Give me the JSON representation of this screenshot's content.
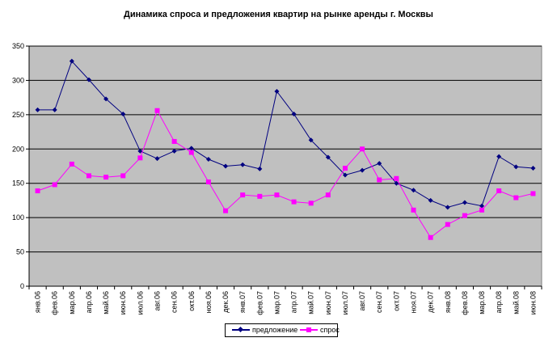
{
  "chart_data": {
    "type": "line",
    "title": "Динамика спроса и предложения квартир на рынке аренды г. Москвы",
    "categories": [
      "янв.06",
      "фев.06",
      "мар.06",
      "апр.06",
      "май.06",
      "июн.06",
      "июл.06",
      "авг.06",
      "сен.06",
      "окт.06",
      "ноя.06",
      "дек.06",
      "янв.07",
      "фев.07",
      "мар.07",
      "апр.07",
      "май.07",
      "июн.07",
      "июл.07",
      "авг.07",
      "сен.07",
      "окт.07",
      "ноя.07",
      "дек.07",
      "янв.08",
      "фев.08",
      "мар.08",
      "апр.08",
      "май.08",
      "июн.08"
    ],
    "series": [
      {
        "name": "предложение",
        "color": "#000080",
        "marker": "diamond",
        "values": [
          257,
          257,
          328,
          301,
          273,
          251,
          197,
          186,
          197,
          201,
          185,
          175,
          177,
          171,
          284,
          251,
          213,
          188,
          162,
          169,
          179,
          150,
          140,
          125,
          115,
          122,
          117,
          189,
          174,
          172
        ]
      },
      {
        "name": "спрос",
        "color": "#ff00ff",
        "marker": "square",
        "values": [
          139,
          148,
          178,
          161,
          159,
          161,
          187,
          256,
          211,
          195,
          152,
          110,
          133,
          131,
          133,
          123,
          121,
          133,
          172,
          200,
          155,
          157,
          111,
          71,
          90,
          103,
          111,
          139,
          129,
          135
        ]
      }
    ],
    "ylim": [
      0,
      350
    ],
    "yticks": [
      0,
      50,
      100,
      150,
      200,
      250,
      300,
      350
    ],
    "grid": true,
    "legend": "bottom",
    "colors": {
      "plot_background": "#c0c0c0",
      "grid": "#000000"
    }
  }
}
